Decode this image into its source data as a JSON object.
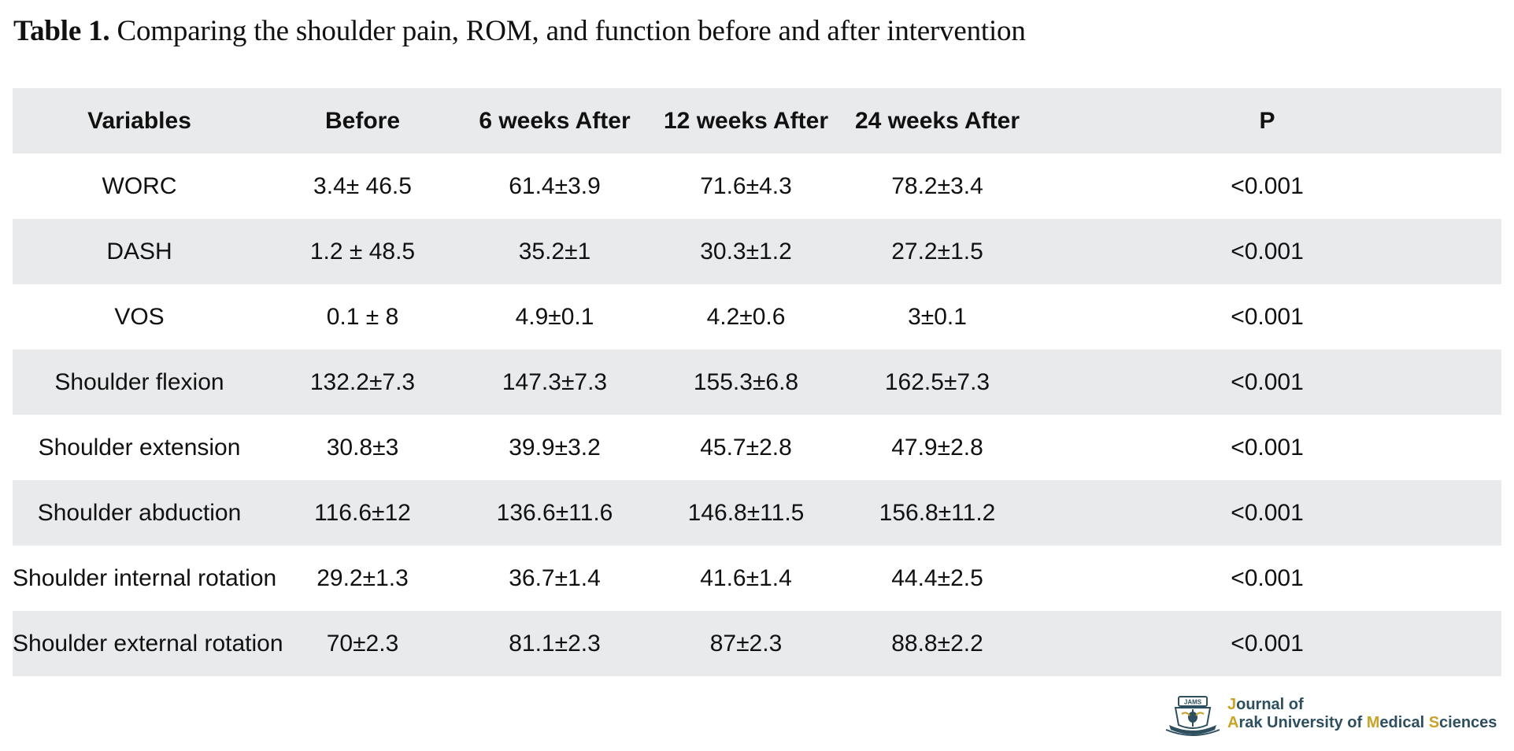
{
  "caption": {
    "label": "Table 1.",
    "text": "Comparing the shoulder pain, ROM, and function before and after intervention"
  },
  "table": {
    "headers": [
      "Variables",
      "Before",
      "6 weeks After",
      "12 weeks After",
      "24 weeks After",
      "P"
    ],
    "rows": [
      [
        "WORC",
        "3.4± 46.5",
        "61.4±3.9",
        "71.6±4.3",
        "78.2±3.4",
        "<0.001"
      ],
      [
        "DASH",
        "1.2 ± 48.5",
        "35.2±1",
        "30.3±1.2",
        "27.2±1.5",
        "<0.001"
      ],
      [
        "VOS",
        "0.1 ± 8",
        "4.9±0.1",
        "4.2±0.6",
        "3±0.1",
        "<0.001"
      ],
      [
        "Shoulder flexion",
        "132.2±7.3",
        "147.3±7.3",
        "155.3±6.8",
        "162.5±7.3",
        "<0.001"
      ],
      [
        "Shoulder extension",
        "30.8±3",
        "39.9±3.2",
        "45.7±2.8",
        "47.9±2.8",
        "<0.001"
      ],
      [
        "Shoulder abduction",
        "116.6±12",
        "136.6±11.6",
        "146.8±11.5",
        "156.8±11.2",
        "<0.001"
      ],
      [
        "Shoulder internal rotation",
        "29.2±1.3",
        "36.7±1.4",
        "41.6±1.4",
        "44.4±2.5",
        "<0.001"
      ],
      [
        "Shoulder external rotation",
        "70±2.3",
        "81.1±2.3",
        "87±2.3",
        "88.8±2.2",
        "<0.001"
      ]
    ]
  },
  "logo": {
    "emblem_text": "JAMS",
    "line1": "Journal of",
    "line2": "Arak University of Medical Sciences",
    "colors": {
      "primary": "#2d4f5f",
      "accent": "#c9a227"
    }
  }
}
